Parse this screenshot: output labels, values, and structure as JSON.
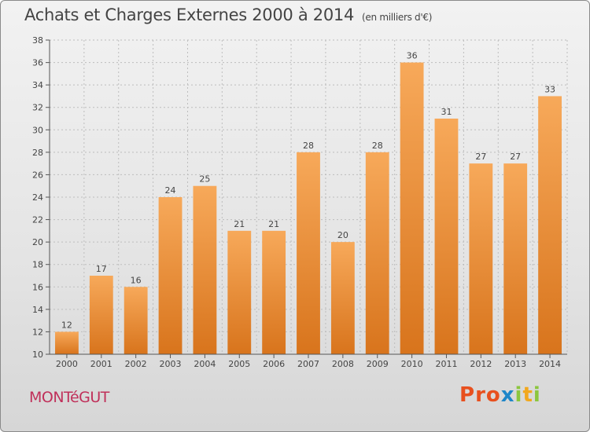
{
  "header": {
    "title": "Achats et Charges Externes 2000 à 2014",
    "unit": "(en milliers d'€)"
  },
  "footer": {
    "town": "MONTéGUT",
    "brand": "Proxiti",
    "brand_colors": [
      "#e8501e",
      "#e8501e",
      "#e8501e",
      "#1e86c8",
      "#8cc63e",
      "#f2a81d",
      "#8cc63e"
    ]
  },
  "colors": {
    "bar_light": "#f7a95a",
    "bar_dark": "#d8741c",
    "grid": "#bdbdbd",
    "axis": "#555555",
    "town": "#c0305a"
  },
  "chart_data": {
    "type": "bar",
    "title": "Achats et Charges Externes 2000 à 2014",
    "subtitle": "(en milliers d'€)",
    "xlabel": "",
    "ylabel": "",
    "categories": [
      "2000",
      "2001",
      "2002",
      "2003",
      "2004",
      "2005",
      "2006",
      "2007",
      "2008",
      "2009",
      "2010",
      "2011",
      "2012",
      "2013",
      "2014"
    ],
    "values": [
      12,
      17,
      16,
      24,
      25,
      21,
      21,
      28,
      20,
      28,
      36,
      31,
      27,
      27,
      33
    ],
    "ylim": [
      10,
      38
    ],
    "yticks": [
      10,
      12,
      14,
      16,
      18,
      20,
      22,
      24,
      26,
      28,
      30,
      32,
      34,
      36,
      38
    ],
    "grid": true,
    "legend": "none"
  }
}
